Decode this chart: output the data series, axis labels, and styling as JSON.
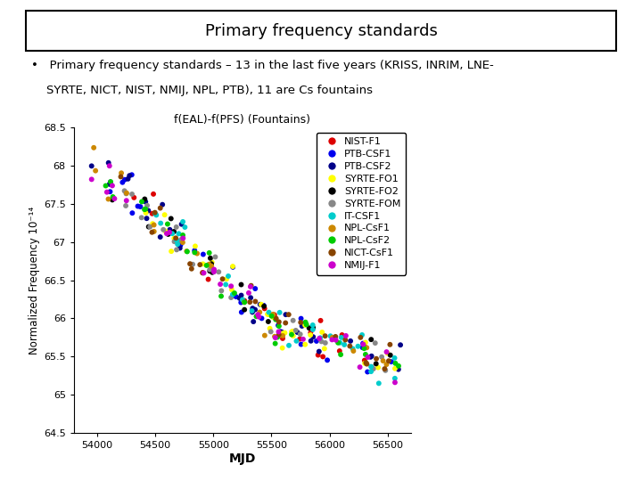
{
  "title": "Primary frequency standards",
  "bullet_line1": "•   Primary frequency standards – 13 in the last five years (KRISS, INRIM, LNE-",
  "bullet_line2": "    SYRTE, NICT, NIST, NMIJ, NPL, PTB), 11 are Cs fountains",
  "plot_title": "f(EAL)-f(PFS) (Fountains)",
  "xlabel": "MJD",
  "ylabel": "Normalized Frequency 10⁻¹⁴",
  "xlim": [
    53800,
    56700
  ],
  "ylim": [
    64.5,
    68.5
  ],
  "xticks": [
    54000,
    54500,
    55000,
    55500,
    56000,
    56500
  ],
  "xtick_labels": [
    "54000",
    "54500",
    "55000",
    "55500",
    "56000",
    "56500"
  ],
  "yticks": [
    64.5,
    65,
    65.5,
    66,
    66.5,
    67,
    67.5,
    68,
    68.5
  ],
  "ytick_labels": [
    "64.5",
    "65",
    "65.5",
    "66",
    "66.5",
    "67",
    "67.5",
    "68",
    "68.5"
  ],
  "series": [
    {
      "name": "NIST-F1",
      "color": "#dd0000"
    },
    {
      "name": "PTB-CSF1",
      "color": "#0000ee"
    },
    {
      "name": "PTB-CSF2",
      "color": "#000088"
    },
    {
      "name": "SYRTE-FO1",
      "color": "#ffff00"
    },
    {
      "name": "SYRTE-FO2",
      "color": "#000000"
    },
    {
      "name": "SYRTE-FOM",
      "color": "#888888"
    },
    {
      "name": "IT-CSF1",
      "color": "#00cccc"
    },
    {
      "name": "NPL-CsF1",
      "color": "#cc8800"
    },
    {
      "name": "NPL-CsF2",
      "color": "#00cc00"
    },
    {
      "name": "NICT-CsF1",
      "color": "#884400"
    },
    {
      "name": "NMIJ-F1",
      "color": "#cc00cc"
    }
  ],
  "seed": 17,
  "trend_breakpoint": 55600,
  "slope1": -0.00135,
  "slope2": -0.0004,
  "intercept": 68.05,
  "noise_std": 0.13
}
